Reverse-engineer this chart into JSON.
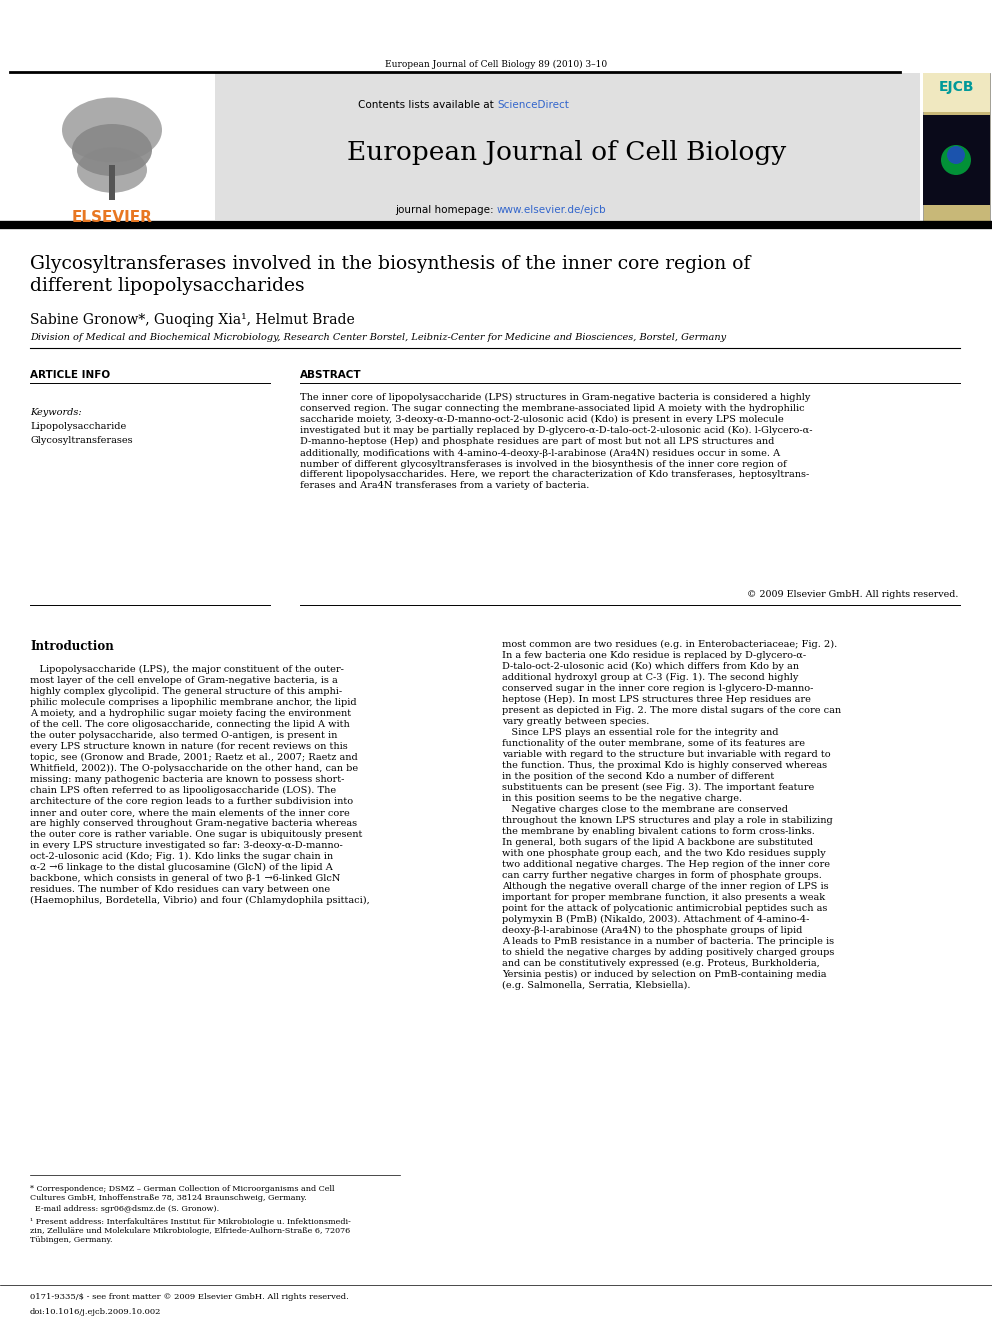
{
  "page_width": 9.92,
  "page_height": 13.23,
  "background_color": "#ffffff",
  "header_journal_text": "European Journal of Cell Biology 89 (2010) 3–10",
  "header_bg_color": "#e0e0e0",
  "header_contents_text": "Contents lists available at ",
  "header_sciencedirect": "ScienceDirect",
  "header_journal_name": "European Journal of Cell Biology",
  "header_homepage_text": "journal homepage: ",
  "header_homepage_url": "www.elsevier.de/ejcb",
  "elsevier_color": "#e87722",
  "sciencedirect_color": "#3366cc",
  "url_color": "#3366cc",
  "title": "Glycosyltransferases involved in the biosynthesis of the inner core region of\ndifferent lipopolysaccharides",
  "authors": "Sabine Gronow*, Guoqing Xia¹, Helmut Brade",
  "affiliation": "Division of Medical and Biochemical Microbiology, Research Center Borstel, Leibniz-Center for Medicine and Biosciences, Borstel, Germany",
  "article_info_header": "ARTICLE INFO",
  "abstract_header": "ABSTRACT",
  "keywords_label": "Keywords:",
  "keywords": [
    "Lipopolysaccharide",
    "Glycosyltransferases"
  ],
  "abstract_text": "The inner core of lipopolysaccharide (LPS) structures in Gram-negative bacteria is considered a highly\nconserved region. The sugar connecting the membrane-associated lipid A moiety with the hydrophilic\nsaccharide moiety, 3-deoxy-α-D-manno-oct-2-ulosonic acid (Kdo) is present in every LPS molecule\ninvestigated but it may be partially replaced by D-glycero-α-D-talo-oct-2-ulosonic acid (Ko). l-Glycero-α-\nD-manno-heptose (Hep) and phosphate residues are part of most but not all LPS structures and\nadditionally, modifications with 4-amino-4-deoxy-β-l-arabinose (Ara4N) residues occur in some. A\nnumber of different glycosyltransferases is involved in the biosynthesis of the inner core region of\ndifferent lipopolysaccharides. Here, we report the characterization of Kdo transferases, heptosyltrans-\nferases and Ara4N transferases from a variety of bacteria.",
  "copyright_text": "© 2009 Elsevier GmbH. All rights reserved.",
  "intro_header": "Introduction",
  "intro_col1_p1": "   Lipopolysaccharide (LPS), the major constituent of the outer-\nmost layer of the cell envelope of Gram-negative bacteria, is a\nhighly complex glycolipid. The general structure of this amphi-\nphilic molecule comprises a lipophilic membrane anchor, the lipid\nA moiety, and a hydrophilic sugar moiety facing the environment\nof the cell. The core oligosaccharide, connecting the lipid A with\nthe outer polysaccharide, also termed O-antigen, is present in\nevery LPS structure known in nature (for recent reviews on this\ntopic, see (Gronow and Brade, 2001; Raetz et al., 2007; Raetz and\nWhitfield, 2002)). The O-polysaccharide on the other hand, can be\nmissing: many pathogenic bacteria are known to possess short-\nchain LPS often referred to as lipooligosaccharide (LOS). The\narchitecture of the core region leads to a further subdivision into\ninner and outer core, where the main elements of the inner core\nare highly conserved throughout Gram-negative bacteria whereas\nthe outer core is rather variable. One sugar is ubiquitously present\nin every LPS structure investigated so far: 3-deoxy-α-D-manno-\noct-2-ulosonic acid (Kdo; Fig. 1). Kdo links the sugar chain in\nα-2 →6 linkage to the distal glucosamine (GlcN) of the lipid A\nbackbone, which consists in general of two β-1 →6-linked GlcN\nresidues. The number of Kdo residues can vary between one\n(Haemophilus, Bordetella, Vibrio) and four (Chlamydophila psittaci),",
  "intro_col2_p1": "most common are two residues (e.g. in Enterobacteriaceae; Fig. 2).\nIn a few bacteria one Kdo residue is replaced by D-glycero-α-\nD-talo-oct-2-ulosonic acid (Ko) which differs from Kdo by an\nadditional hydroxyl group at C-3 (Fig. 1). The second highly\nconserved sugar in the inner core region is l-glycero-D-manno-\nheptose (Hep). In most LPS structures three Hep residues are\npresent as depicted in Fig. 2. The more distal sugars of the core can\nvary greatly between species.\n   Since LPS plays an essential role for the integrity and\nfunctionality of the outer membrane, some of its features are\nvariable with regard to the structure but invariable with regard to\nthe function. Thus, the proximal Kdo is highly conserved whereas\nin the position of the second Kdo a number of different\nsubstituents can be present (see Fig. 3). The important feature\nin this position seems to be the negative charge.\n   Negative charges close to the membrane are conserved\nthroughout the known LPS structures and play a role in stabilizing\nthe membrane by enabling bivalent cations to form cross-links.\nIn general, both sugars of the lipid A backbone are substituted\nwith one phosphate group each, and the two Kdo residues supply\ntwo additional negative charges. The Hep region of the inner core\ncan carry further negative charges in form of phosphate groups.\nAlthough the negative overall charge of the inner region of LPS is\nimportant for proper membrane function, it also presents a weak\npoint for the attack of polycationic antimicrobial peptides such as\npolymyxin B (PmB) (Nikaldo, 2003). Attachment of 4-amino-4-\ndeoxy-β-l-arabinose (Ara4N) to the phosphate groups of lipid\nA leads to PmB resistance in a number of bacteria. The principle is\nto shield the negative charges by adding positively charged groups\nand can be constitutively expressed (e.g. Proteus, Burkholderia,\nYersinia pestis) or induced by selection on PmB-containing media\n(e.g. Salmonella, Serratia, Klebsiella).",
  "footnote1": "* Correspondence; DSMZ – German Collection of Microorganisms and Cell\nCultures GmbH, Inhoffenstraße 78, 38124 Braunschweig, Germany.",
  "footnote2": "  E-mail address: sgr06@dsmz.de (S. Gronow).",
  "footnote3": "¹ Present address: Interfakultäres Institut für Mikrobiologie u. Infektionsmedi-\nzin, Zelluläre und Molekulare Mikrobiologie, Elfriede-Aulhorn-Straße 6, 72076\nTübingen, Germany.",
  "footer_text1": "0171-9335/$ - see front matter © 2009 Elsevier GmbH. All rights reserved.",
  "footer_text2": "doi:10.1016/j.ejcb.2009.10.002"
}
